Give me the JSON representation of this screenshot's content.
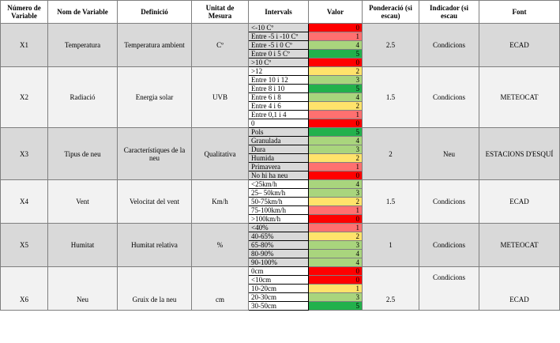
{
  "headers": [
    "Número de Variable",
    "Nom de Variable",
    "Definició",
    "Unitat de Mesura",
    "Intervals",
    "Valor",
    "Ponderació (si escau)",
    "Indicador (si escau",
    "Font"
  ],
  "colors": {
    "red": "#ff0000",
    "light_red": "#ff7070",
    "yellow": "#ffe36b",
    "light_green": "#a9d57d",
    "green": "#22b14c",
    "dark_band": "#d9d9d9",
    "light_band": "#f2f2f2"
  },
  "groups": [
    {
      "num": "X1",
      "name": "Temperatura",
      "def": "Temperatura ambient",
      "unit": "Cº",
      "weight": "2.5",
      "indicator": "Condicions",
      "source": "ECAD",
      "rows": [
        {
          "int": "<-10 Cº",
          "val": "0",
          "color": "red"
        },
        {
          "int": "Entre -5 i -10 Cº",
          "val": "1",
          "color": "light_red"
        },
        {
          "int": "Entre -5 i 0 Cº",
          "val": "4",
          "color": "light_green"
        },
        {
          "int": "Entre 0 i 5 Cº",
          "val": "5",
          "color": "green"
        },
        {
          "int": ">10 Cº",
          "val": "0",
          "color": "red"
        }
      ]
    },
    {
      "num": "X2",
      "name": "Radiació",
      "def": "Energia solar",
      "unit": "UVB",
      "weight": "1.5",
      "indicator": "Condicions",
      "source": "METEOCAT",
      "rows": [
        {
          "int": ">12",
          "val": "2",
          "color": "yellow"
        },
        {
          "int": "Entre 10 i 12",
          "val": "3",
          "color": "light_green"
        },
        {
          "int": "Entre 8 i 10",
          "val": "5",
          "color": "green"
        },
        {
          "int": "Entre 6 i 8",
          "val": "4",
          "color": "light_green"
        },
        {
          "int": "Entre 4 i 6",
          "val": "2",
          "color": "yellow"
        },
        {
          "int": "Entre 0,1 i 4",
          "val": "1",
          "color": "light_red"
        },
        {
          "int": "0",
          "val": "0",
          "color": "red"
        }
      ]
    },
    {
      "num": "X3",
      "name": "Tipus de neu",
      "def": "Característiques de la neu",
      "unit": "Qualitativa",
      "weight": "2",
      "indicator": "Neu",
      "source": "ESTACIONS D'ESQUÍ",
      "rows": [
        {
          "int": "Pols",
          "val": "5",
          "color": "green"
        },
        {
          "int": "Granulada",
          "val": "4",
          "color": "light_green"
        },
        {
          "int": "Dura",
          "val": "3",
          "color": "light_green"
        },
        {
          "int": "Humida",
          "val": "2",
          "color": "yellow"
        },
        {
          "int": "Primavera",
          "val": "1",
          "color": "light_red"
        },
        {
          "int": "No hi ha  neu",
          "val": "0",
          "color": "red"
        }
      ]
    },
    {
      "num": "X4",
      "name": "Vent",
      "def": "Velocitat del vent",
      "unit": "Km/h",
      "weight": "1.5",
      "indicator": "Condicions",
      "source": "ECAD",
      "rows": [
        {
          "int": "<25km/h",
          "val": "4",
          "color": "light_green"
        },
        {
          "int": "25– 50km/h",
          "val": "3",
          "color": "light_green"
        },
        {
          "int": "50-75km/h",
          "val": "2",
          "color": "yellow"
        },
        {
          "int": "75-100km/h",
          "val": "1",
          "color": "light_red"
        },
        {
          "int": ">100km/h",
          "val": "0",
          "color": "red"
        }
      ]
    },
    {
      "num": "X5",
      "name": "Humitat",
      "def": "Humitat relativa",
      "unit": "%",
      "weight": "1",
      "indicator": "Condicions",
      "source": "METEOCAT",
      "rows": [
        {
          "int": "<40%",
          "val": "1",
          "color": "light_red"
        },
        {
          "int": "40-65%",
          "val": "2",
          "color": "yellow"
        },
        {
          "int": "65-80%",
          "val": "3",
          "color": "light_green"
        },
        {
          "int": "80-90%",
          "val": "4",
          "color": "light_green"
        },
        {
          "int": "90-100%",
          "val": "4",
          "color": "light_green"
        }
      ]
    },
    {
      "num": "X6",
      "name": "Neu",
      "def": "Gruix de la neu",
      "unit": "cm",
      "weight": "2.5",
      "indicator": "Condicions",
      "source": "ECAD",
      "rows": [
        {
          "int": "0cm",
          "val": "0",
          "color": "red"
        },
        {
          "int": "<10cm",
          "val": "0",
          "color": "red"
        },
        {
          "int": "10-20cm",
          "val": "1",
          "color": "yellow"
        },
        {
          "int": "20-30cm",
          "val": "3",
          "color": "light_green"
        },
        {
          "int": "30-50cm",
          "val": "5",
          "color": "green"
        }
      ]
    }
  ]
}
